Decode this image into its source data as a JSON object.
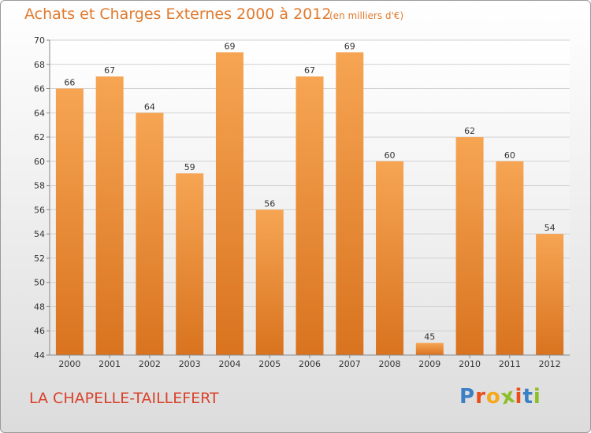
{
  "header": {
    "title": "Achats et Charges Externes 2000 à 2012",
    "subtitle": "(en milliers d'€)"
  },
  "footer": {
    "commune": "LA CHAPELLE-TAILLEFERT",
    "logo_letters": [
      "P",
      "r",
      "o",
      "x",
      "i",
      "t",
      "i"
    ],
    "logo_colors": [
      "#3b7fc4",
      "#e94e1b",
      "#f4a91b",
      "#8cbf26",
      "#e94e1b",
      "#3b7fc4",
      "#8cbf26"
    ]
  },
  "chart_data": {
    "type": "bar",
    "categories": [
      "2000",
      "2001",
      "2002",
      "2003",
      "2004",
      "2005",
      "2006",
      "2007",
      "2008",
      "2009",
      "2010",
      "2011",
      "2012"
    ],
    "values": [
      66,
      67,
      64,
      59,
      69,
      56,
      67,
      69,
      60,
      45,
      62,
      60,
      54
    ],
    "title": "Achats et Charges Externes 2000 à 2012",
    "subtitle": "(en milliers d'€)",
    "ylim": [
      44,
      70
    ],
    "yticks": [
      44,
      46,
      48,
      50,
      52,
      54,
      56,
      58,
      60,
      62,
      64,
      66,
      68,
      70
    ],
    "grid": true,
    "bar_color": "#f0913a",
    "legend": "none"
  }
}
